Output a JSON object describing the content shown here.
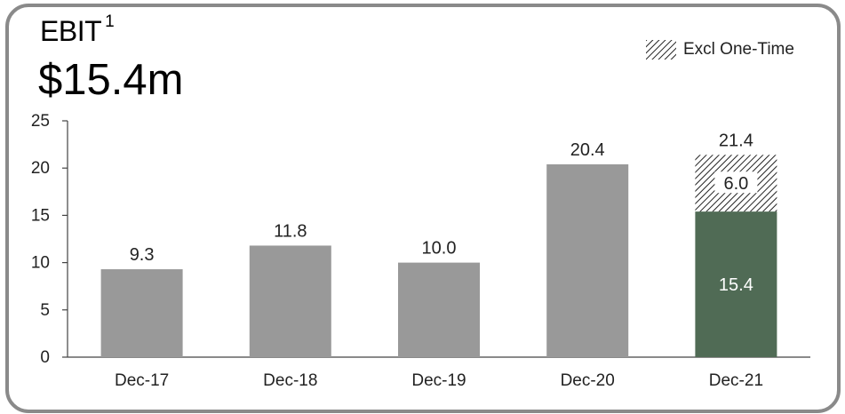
{
  "header": {
    "title": "EBIT",
    "title_footnote": "1",
    "headline_value": "$15.4m"
  },
  "legend": {
    "items": [
      {
        "label": "Excl One-Time",
        "pattern": "diagonal-hatch",
        "color": "#222222"
      }
    ]
  },
  "colors": {
    "bar_gray": "#999999",
    "bar_highlight": "#506b55",
    "hatch": "#222222",
    "axis": "#444444",
    "frame": "#8a8a8a"
  },
  "chart_data": {
    "type": "bar",
    "stacked": true,
    "categories": [
      "Dec-17",
      "Dec-18",
      "Dec-19",
      "Dec-20",
      "Dec-21"
    ],
    "series": [
      {
        "values": [
          9.3,
          11.8,
          10.0,
          20.4,
          15.4
        ]
      },
      {
        "name": "Excl One-Time",
        "values": [
          null,
          null,
          null,
          null,
          6.0
        ]
      }
    ],
    "total_labels": [
      "9.3",
      "11.8",
      "10.0",
      "20.4",
      "21.4"
    ],
    "segment_labels": [
      {
        "category": "Dec-21",
        "label": "15.4"
      },
      {
        "category": "Dec-21",
        "label": "6.0"
      }
    ],
    "yticks": [
      0,
      5,
      10,
      15,
      20,
      25
    ],
    "ylim": [
      0,
      25
    ],
    "grid": false,
    "legend_position": "top-right"
  }
}
